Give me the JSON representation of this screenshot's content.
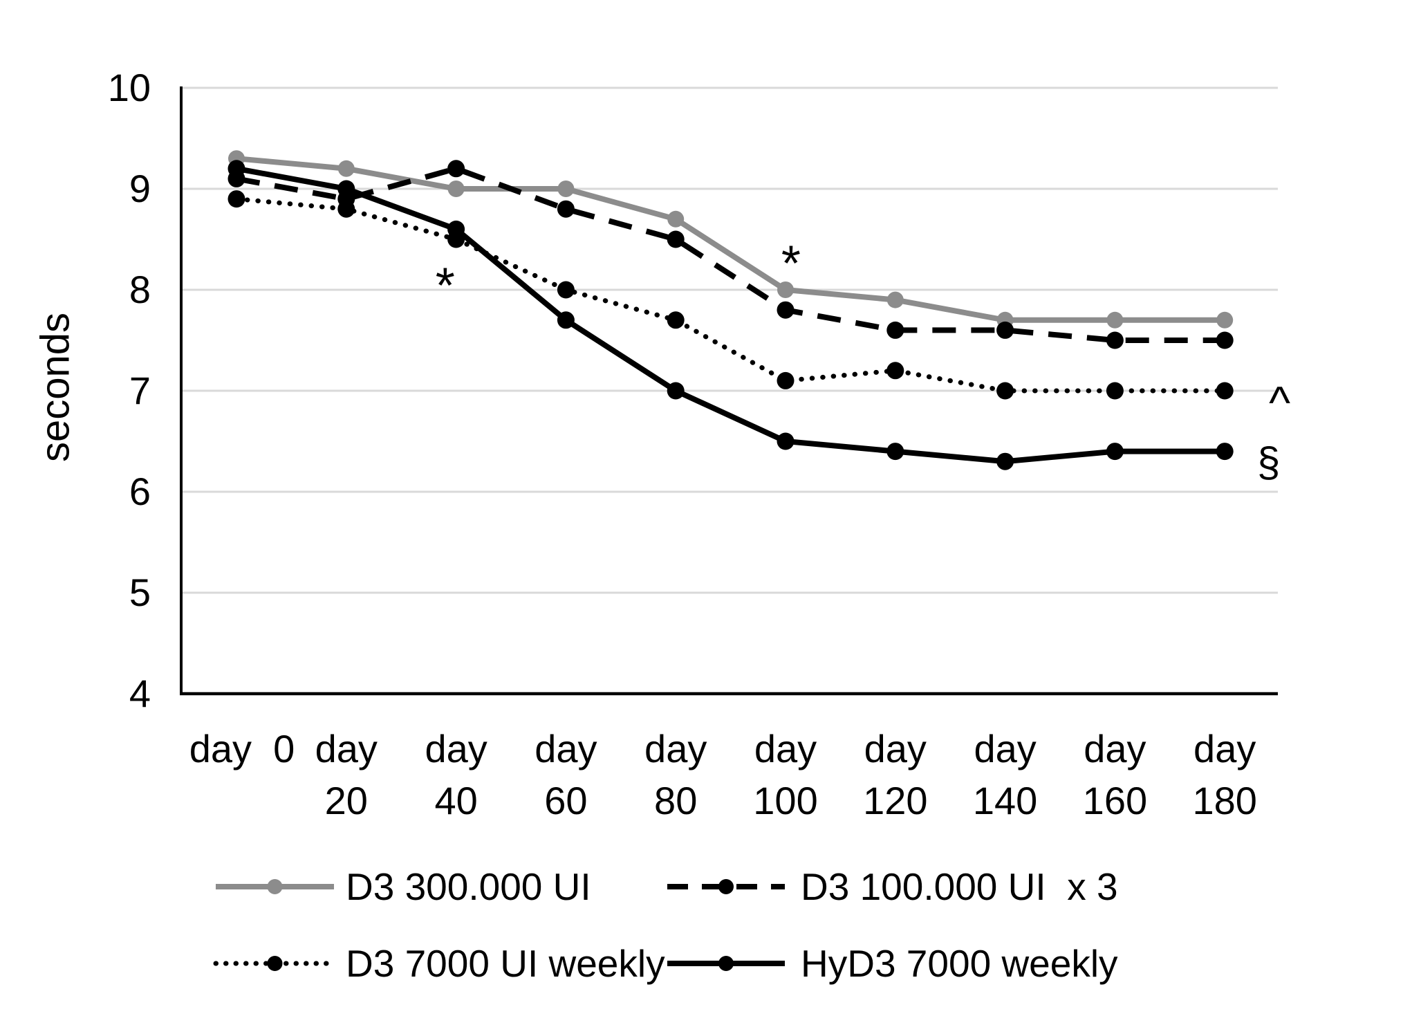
{
  "figure": {
    "background": "#FFFFFF"
  },
  "chart_data": {
    "type": "line",
    "title": "",
    "ylabel": "seconds",
    "xlabel": "",
    "ylim": [
      4,
      10
    ],
    "yticks": [
      4,
      5,
      6,
      7,
      8,
      9,
      10
    ],
    "grid": "horizontal",
    "grid_color": "#D9D9D9",
    "axis_color": "#000000",
    "categories": [
      "day  0",
      "day 20",
      "day 40",
      "day 60",
      "day 80",
      "day 100",
      "day 120",
      "day 140",
      "day 160",
      "day 180"
    ],
    "x_days": [
      0,
      20,
      40,
      60,
      80,
      100,
      120,
      140,
      160,
      180
    ],
    "series": [
      {
        "name": "D3 300.000 UI",
        "color": "#8C8C8C",
        "line_style": "solid",
        "marker": "circle",
        "values": [
          9.3,
          9.2,
          9.0,
          9.0,
          8.7,
          8.0,
          7.9,
          7.7,
          7.7,
          7.7
        ]
      },
      {
        "name": "D3 100.000 UI  x 3",
        "color": "#000000",
        "line_style": "dashed",
        "marker": "circle",
        "values": [
          9.1,
          8.9,
          9.2,
          8.8,
          8.5,
          7.8,
          7.6,
          7.6,
          7.5,
          7.5
        ]
      },
      {
        "name": "D3 7000 UI weekly",
        "color": "#000000",
        "line_style": "dotted",
        "marker": "circle",
        "values": [
          8.9,
          8.8,
          8.5,
          8.0,
          7.7,
          7.1,
          7.2,
          7.0,
          7.0,
          7.0
        ]
      },
      {
        "name": "HyD3 7000 weekly",
        "color": "#000000",
        "line_style": "solid",
        "marker": "circle",
        "values": [
          9.2,
          9.0,
          8.6,
          7.7,
          7.0,
          6.5,
          6.4,
          6.3,
          6.4,
          6.4
        ]
      }
    ],
    "annotations": [
      {
        "text": "*",
        "day": 38,
        "value": 8.12
      },
      {
        "text": "*",
        "day": 101,
        "value": 8.34
      },
      {
        "text": "^",
        "day": 190,
        "value": 6.99
      },
      {
        "text": "§",
        "day": 188,
        "value": 6.27
      }
    ],
    "legend_position": "bottom"
  }
}
